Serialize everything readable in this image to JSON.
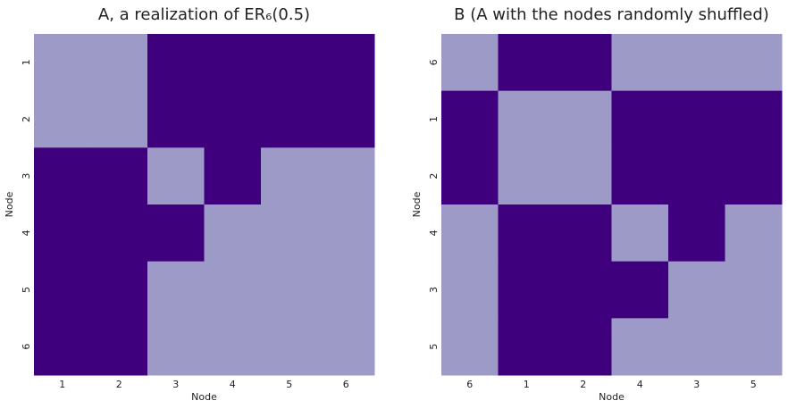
{
  "chart_data": [
    {
      "type": "heatmap",
      "title": "A, a realization of ER₆(0.5)",
      "x_label": "Node",
      "y_label": "Node",
      "x": [
        "1",
        "2",
        "3",
        "4",
        "5",
        "6"
      ],
      "y": [
        "1",
        "2",
        "3",
        "4",
        "5",
        "6"
      ],
      "values": [
        [
          0,
          0,
          1,
          1,
          1,
          1
        ],
        [
          0,
          0,
          1,
          1,
          1,
          1
        ],
        [
          1,
          1,
          0,
          1,
          0,
          0
        ],
        [
          1,
          1,
          1,
          0,
          0,
          0
        ],
        [
          1,
          1,
          0,
          0,
          0,
          0
        ],
        [
          1,
          1,
          0,
          0,
          0,
          0
        ]
      ],
      "zlim": [
        0,
        1
      ],
      "colors": [
        "#9e9ac8",
        "#3f007d"
      ]
    },
    {
      "type": "heatmap",
      "title": "B (A with the nodes randomly shuffled)",
      "x_label": "Node",
      "y_label": "Node",
      "x": [
        "6",
        "1",
        "2",
        "4",
        "3",
        "5"
      ],
      "y": [
        "6",
        "1",
        "2",
        "4",
        "3",
        "5"
      ],
      "values": [
        [
          0,
          1,
          1,
          0,
          0,
          0
        ],
        [
          1,
          0,
          0,
          1,
          1,
          1
        ],
        [
          1,
          0,
          0,
          1,
          1,
          1
        ],
        [
          0,
          1,
          1,
          0,
          1,
          0
        ],
        [
          0,
          1,
          1,
          1,
          0,
          0
        ],
        [
          0,
          1,
          1,
          0,
          0,
          0
        ]
      ],
      "zlim": [
        0,
        1
      ],
      "colors": [
        "#9e9ac8",
        "#3f007d"
      ]
    }
  ]
}
